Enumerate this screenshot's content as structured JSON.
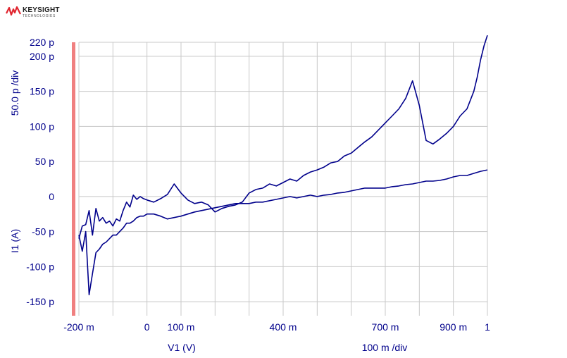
{
  "logo": {
    "brand": "KEYSIGHT",
    "sub": "TECHNOLOGIES",
    "icon": "keysight-wave-icon",
    "color": "#e0242e"
  },
  "chart_data": {
    "type": "line",
    "xlabel": "V1 (V)",
    "x_division": "100 m /div",
    "ylabel": "I1 (A)",
    "y_division": "50.0 p /div",
    "xlim": [
      -0.2,
      1.0
    ],
    "ylim": [
      -170,
      220
    ],
    "x_ticks": [
      {
        "value": -0.2,
        "label": "-200 m"
      },
      {
        "value": 0.0,
        "label": "0"
      },
      {
        "value": 0.1,
        "label": "100 m"
      },
      {
        "value": 0.4,
        "label": "400 m"
      },
      {
        "value": 0.7,
        "label": "700 m"
      },
      {
        "value": 0.9,
        "label": "900 m"
      },
      {
        "value": 1.0,
        "label": "1"
      }
    ],
    "y_ticks": [
      {
        "value": 220,
        "label": "220 p"
      },
      {
        "value": 200,
        "label": "200 p"
      },
      {
        "value": 150,
        "label": "150 p"
      },
      {
        "value": 100,
        "label": "100 p"
      },
      {
        "value": 50,
        "label": "50 p"
      },
      {
        "value": 0,
        "label": "0"
      },
      {
        "value": -50,
        "label": "-50 p"
      },
      {
        "value": -100,
        "label": "-100 p"
      },
      {
        "value": -150,
        "label": "-150 p"
      }
    ],
    "x_grid": [
      -0.2,
      -0.1,
      0.0,
      0.1,
      0.2,
      0.3,
      0.4,
      0.5,
      0.6,
      0.7,
      0.8,
      0.9,
      1.0
    ],
    "y_grid": [
      220,
      200,
      150,
      100,
      50,
      0,
      -50,
      -100,
      -150
    ],
    "grid": true,
    "series": [
      {
        "color": "#00008b",
        "x": [
          -0.2,
          -0.19,
          -0.18,
          -0.17,
          -0.16,
          -0.15,
          -0.14,
          -0.13,
          -0.12,
          -0.11,
          -0.1,
          -0.09,
          -0.08,
          -0.07,
          -0.06,
          -0.05,
          -0.04,
          -0.03,
          -0.02,
          -0.01,
          0.0,
          0.02,
          0.04,
          0.06,
          0.08,
          0.1,
          0.12,
          0.14,
          0.16,
          0.18,
          0.2,
          0.22,
          0.24,
          0.26,
          0.28,
          0.3,
          0.32,
          0.34,
          0.36,
          0.38,
          0.4,
          0.42,
          0.44,
          0.46,
          0.48,
          0.5,
          0.52,
          0.54,
          0.56,
          0.58,
          0.6,
          0.62,
          0.64,
          0.66,
          0.68,
          0.7,
          0.72,
          0.74,
          0.76,
          0.78,
          0.8,
          0.82,
          0.84,
          0.86,
          0.88,
          0.9,
          0.92,
          0.94,
          0.96,
          0.97,
          0.98,
          0.99,
          1.0
        ],
        "y": [
          -60,
          -42,
          -40,
          -20,
          -55,
          -17,
          -35,
          -30,
          -38,
          -35,
          -42,
          -32,
          -35,
          -20,
          -8,
          -15,
          2,
          -4,
          0,
          -3,
          -5,
          -8,
          -3,
          3,
          18,
          5,
          -5,
          -10,
          -8,
          -12,
          -22,
          -17,
          -14,
          -12,
          -8,
          5,
          10,
          12,
          18,
          15,
          20,
          25,
          22,
          30,
          35,
          38,
          42,
          48,
          50,
          58,
          62,
          70,
          78,
          85,
          95,
          105,
          115,
          125,
          140,
          165,
          130,
          80,
          75,
          82,
          90,
          100,
          115,
          125,
          150,
          170,
          195,
          215,
          230
        ],
        "name": ""
      },
      {
        "color": "#00008b",
        "x": [
          -0.2,
          -0.19,
          -0.18,
          -0.17,
          -0.16,
          -0.15,
          -0.14,
          -0.13,
          -0.12,
          -0.11,
          -0.1,
          -0.09,
          -0.08,
          -0.07,
          -0.06,
          -0.05,
          -0.04,
          -0.03,
          -0.02,
          -0.01,
          0.0,
          0.02,
          0.04,
          0.06,
          0.08,
          0.1,
          0.12,
          0.14,
          0.16,
          0.18,
          0.2,
          0.22,
          0.24,
          0.26,
          0.28,
          0.3,
          0.32,
          0.34,
          0.36,
          0.38,
          0.4,
          0.42,
          0.44,
          0.46,
          0.48,
          0.5,
          0.52,
          0.54,
          0.56,
          0.58,
          0.6,
          0.62,
          0.64,
          0.66,
          0.68,
          0.7,
          0.72,
          0.74,
          0.76,
          0.78,
          0.8,
          0.82,
          0.84,
          0.86,
          0.88,
          0.9,
          0.92,
          0.94,
          0.96,
          0.98,
          1.0
        ],
        "y": [
          -55,
          -78,
          -50,
          -140,
          -110,
          -80,
          -75,
          -68,
          -65,
          -60,
          -55,
          -55,
          -50,
          -45,
          -38,
          -38,
          -35,
          -30,
          -28,
          -28,
          -25,
          -25,
          -28,
          -32,
          -30,
          -28,
          -25,
          -22,
          -20,
          -18,
          -16,
          -14,
          -12,
          -10,
          -10,
          -10,
          -8,
          -8,
          -6,
          -4,
          -2,
          0,
          -2,
          0,
          2,
          0,
          2,
          3,
          5,
          6,
          8,
          10,
          12,
          12,
          12,
          12,
          14,
          15,
          17,
          18,
          20,
          22,
          22,
          23,
          25,
          28,
          30,
          30,
          33,
          36,
          38
        ],
        "name": ""
      }
    ]
  }
}
